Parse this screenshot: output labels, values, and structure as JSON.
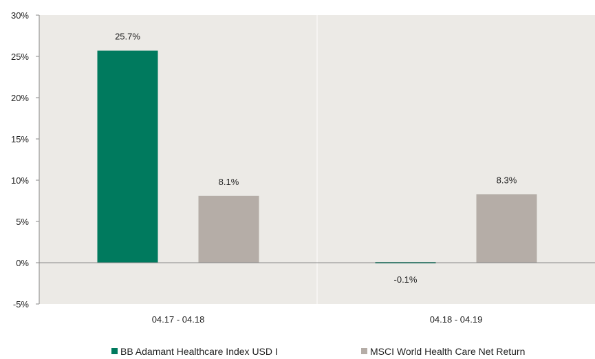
{
  "chart_data": {
    "type": "bar",
    "categories": [
      "04.17 - 04.18",
      "04.18 - 04.19"
    ],
    "series": [
      {
        "name": "BB Adamant Healthcare Index USD I",
        "values": [
          25.7,
          -0.1
        ],
        "labels": [
          "25.7%",
          "-0.1%"
        ],
        "color": "#007A5E"
      },
      {
        "name": "MSCI World Health Care Net Return",
        "values": [
          8.1,
          8.3
        ],
        "labels": [
          "8.1%",
          "8.3%"
        ],
        "color": "#B5ADA7"
      }
    ],
    "ylim": [
      -5,
      30
    ],
    "yticks": [
      30,
      25,
      20,
      15,
      10,
      5,
      0,
      -5
    ],
    "ytick_labels": [
      "30%",
      "25%",
      "20%",
      "15%",
      "10%",
      "5%",
      "0%",
      "-5%"
    ],
    "title": "",
    "xlabel": "",
    "ylabel": "",
    "grid": false,
    "legend_position": "bottom",
    "colors": {
      "plot_background": "#ECEAE6",
      "axis": "#888888",
      "divider": "#FFFFFF"
    }
  }
}
